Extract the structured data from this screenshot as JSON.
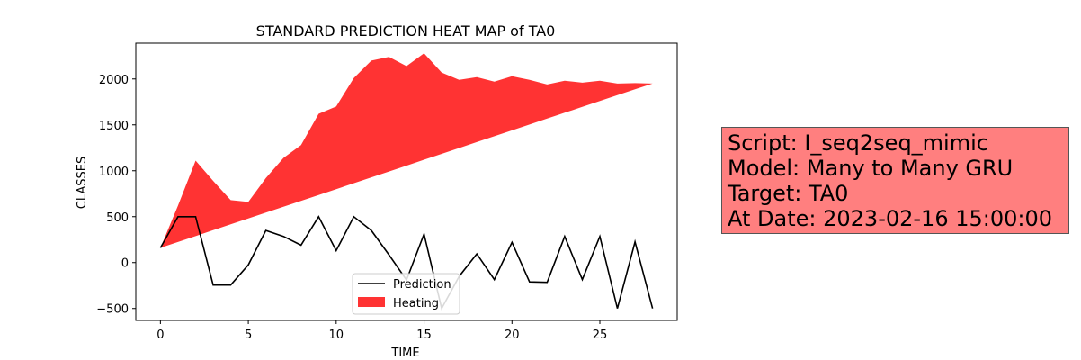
{
  "chart_data": {
    "type": "area",
    "title": "STANDARD PREDICTION HEAT MAP of TA0",
    "xlabel": "TIME",
    "ylabel": "CLASSES",
    "xlim": [
      -1.4,
      29.4
    ],
    "ylim": [
      -630,
      2390
    ],
    "xticks": [
      0,
      5,
      10,
      15,
      20,
      25
    ],
    "yticks": [
      -500,
      0,
      500,
      1000,
      1500,
      2000
    ],
    "x": [
      0,
      1,
      2,
      3,
      4,
      5,
      6,
      7,
      8,
      9,
      10,
      11,
      12,
      13,
      14,
      15,
      16,
      17,
      18,
      19,
      20,
      21,
      22,
      23,
      24,
      25,
      26,
      27,
      28
    ],
    "series": [
      {
        "name": "Prediction",
        "kind": "line",
        "color": "#000000",
        "values": [
          160,
          500,
          500,
          -245,
          -245,
          -25,
          350,
          285,
          190,
          500,
          130,
          500,
          350,
          85,
          -190,
          310,
          -500,
          -150,
          95,
          -185,
          220,
          -210,
          -215,
          285,
          -185,
          285,
          -500,
          225,
          -500
        ]
      },
      {
        "name": "Heating",
        "kind": "fill_between",
        "color": "#ff0000",
        "alpha": 0.8,
        "upper": [
          160,
          620,
          1110,
          890,
          680,
          660,
          920,
          1140,
          1280,
          1620,
          1700,
          2010,
          2200,
          2240,
          2140,
          2280,
          2070,
          1990,
          2020,
          1970,
          2030,
          1990,
          1940,
          1980,
          1960,
          1980,
          1950,
          1955,
          1950
        ],
        "lower": [
          160,
          224,
          288,
          352,
          416,
          480,
          544,
          608,
          672,
          736,
          800,
          864,
          928,
          992,
          1056,
          1120,
          1184,
          1248,
          1312,
          1376,
          1440,
          1504,
          1568,
          1632,
          1696,
          1760,
          1824,
          1888,
          1950
        ]
      }
    ],
    "legend_position": "lower-center"
  },
  "info": {
    "script": "Script: I_seq2seq_mimic",
    "model": "Model: Many to Many GRU",
    "target": "Target: TA0",
    "date": "At Date: 2023-02-16 15:00:00",
    "background": "#ff7f7f"
  }
}
